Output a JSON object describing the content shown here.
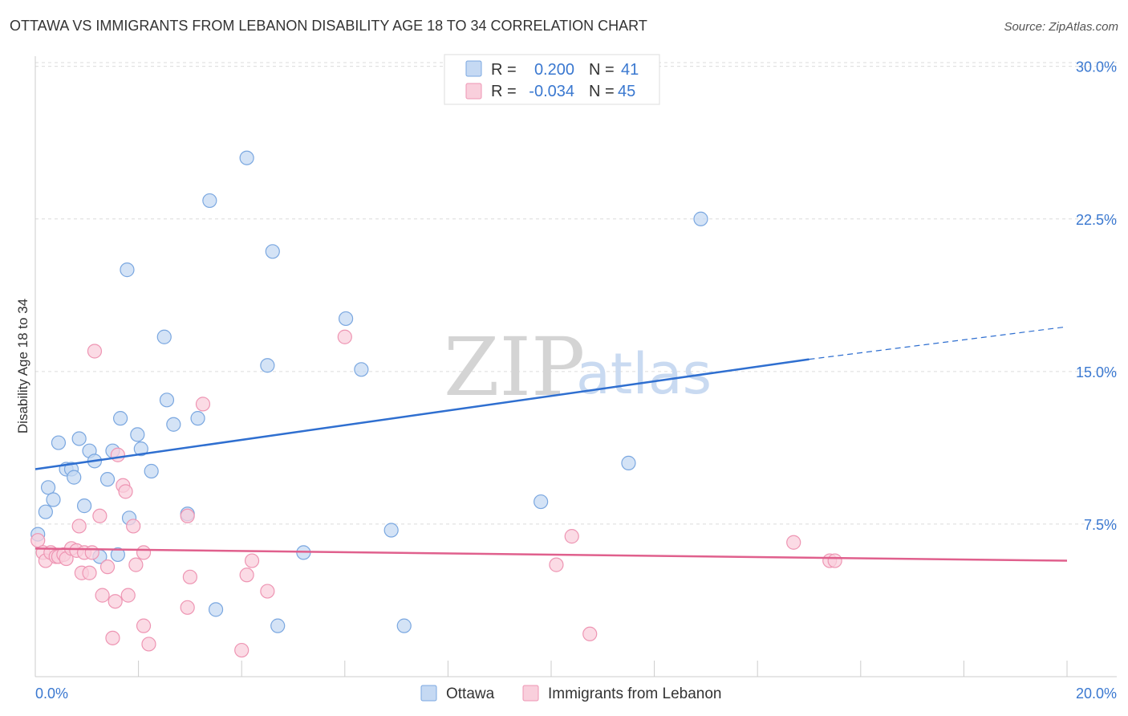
{
  "header": {
    "title": "OTTAWA VS IMMIGRANTS FROM LEBANON DISABILITY AGE 18 TO 34 CORRELATION CHART",
    "source": "Source: ZipAtlas.com"
  },
  "watermark": {
    "zip": "ZIP",
    "atlas": "atlas"
  },
  "colors": {
    "ottawa_fill": "#c5d9f3",
    "ottawa_stroke": "#7aa7e0",
    "ottawa_line": "#2f6fd0",
    "lebanon_fill": "#f9cfdc",
    "lebanon_stroke": "#ee95b3",
    "lebanon_line": "#e0608d",
    "tick_text": "#3a78d0"
  },
  "legend": {
    "rows": [
      {
        "r_label": "R =",
        "r_value": "0.200",
        "n_label": "N =",
        "n_value": "41"
      },
      {
        "r_label": "R =",
        "r_value": "-0.034",
        "n_label": "N =",
        "n_value": "45"
      }
    ]
  },
  "chart_data": {
    "type": "scatter",
    "title": "OTTAWA VS IMMIGRANTS FROM LEBANON DISABILITY AGE 18 TO 34 CORRELATION CHART",
    "xlabel": "",
    "ylabel": "Disability Age 18 to 34",
    "xlim": [
      0,
      20
    ],
    "ylim": [
      0,
      30.5
    ],
    "x_tick_labels": [
      "0.0%",
      "20.0%"
    ],
    "y_ticks": [
      7.5,
      15.0,
      22.5,
      30.0
    ],
    "y_tick_labels": [
      "7.5%",
      "15.0%",
      "22.5%",
      "30.0%"
    ],
    "grid": true,
    "series": [
      {
        "name": "Ottawa",
        "points": [
          [
            0.05,
            7.0
          ],
          [
            0.2,
            8.1
          ],
          [
            0.25,
            9.3
          ],
          [
            0.35,
            8.7
          ],
          [
            0.45,
            11.5
          ],
          [
            0.6,
            10.2
          ],
          [
            0.7,
            10.2
          ],
          [
            0.75,
            9.8
          ],
          [
            0.85,
            11.7
          ],
          [
            0.95,
            8.4
          ],
          [
            1.05,
            11.1
          ],
          [
            1.15,
            10.6
          ],
          [
            1.25,
            5.9
          ],
          [
            1.4,
            9.7
          ],
          [
            1.5,
            11.1
          ],
          [
            1.6,
            6.0
          ],
          [
            1.65,
            12.7
          ],
          [
            1.78,
            20.0
          ],
          [
            1.82,
            7.8
          ],
          [
            1.98,
            11.9
          ],
          [
            2.05,
            11.2
          ],
          [
            2.25,
            10.1
          ],
          [
            2.5,
            16.7
          ],
          [
            2.55,
            13.6
          ],
          [
            2.68,
            12.4
          ],
          [
            2.95,
            8.0
          ],
          [
            3.15,
            12.7
          ],
          [
            3.38,
            23.4
          ],
          [
            3.5,
            3.3
          ],
          [
            4.1,
            25.5
          ],
          [
            4.5,
            15.3
          ],
          [
            4.6,
            20.9
          ],
          [
            4.7,
            2.5
          ],
          [
            5.2,
            6.1
          ],
          [
            6.02,
            17.6
          ],
          [
            6.32,
            15.1
          ],
          [
            6.9,
            7.2
          ],
          [
            7.15,
            2.5
          ],
          [
            9.8,
            8.6
          ],
          [
            11.5,
            10.5
          ],
          [
            12.9,
            22.5
          ]
        ],
        "trend": {
          "x_start": 0,
          "y_start": 10.2,
          "x_solid_end": 15.0,
          "y_solid_end": 15.6,
          "x_end": 20,
          "y_end": 17.2
        }
      },
      {
        "name": "Immigrants from Lebanon",
        "points": [
          [
            0.05,
            6.7
          ],
          [
            0.15,
            6.1
          ],
          [
            0.2,
            5.7
          ],
          [
            0.3,
            6.1
          ],
          [
            0.4,
            5.9
          ],
          [
            0.45,
            5.9
          ],
          [
            0.55,
            6.0
          ],
          [
            0.6,
            5.8
          ],
          [
            0.7,
            6.3
          ],
          [
            0.8,
            6.2
          ],
          [
            0.85,
            7.4
          ],
          [
            0.9,
            5.1
          ],
          [
            0.95,
            6.1
          ],
          [
            1.05,
            5.1
          ],
          [
            1.1,
            6.1
          ],
          [
            1.15,
            16.0
          ],
          [
            1.25,
            7.9
          ],
          [
            1.3,
            4.0
          ],
          [
            1.4,
            5.4
          ],
          [
            1.5,
            1.9
          ],
          [
            1.55,
            3.7
          ],
          [
            1.6,
            10.9
          ],
          [
            1.7,
            9.4
          ],
          [
            1.75,
            9.1
          ],
          [
            1.8,
            4.0
          ],
          [
            1.9,
            7.4
          ],
          [
            1.95,
            5.5
          ],
          [
            2.1,
            6.1
          ],
          [
            2.1,
            2.5
          ],
          [
            2.2,
            1.6
          ],
          [
            2.95,
            7.9
          ],
          [
            2.95,
            3.4
          ],
          [
            3.0,
            4.9
          ],
          [
            3.25,
            13.4
          ],
          [
            4.0,
            1.3
          ],
          [
            4.1,
            5.0
          ],
          [
            4.2,
            5.7
          ],
          [
            4.5,
            4.2
          ],
          [
            6.0,
            16.7
          ],
          [
            10.1,
            5.5
          ],
          [
            10.4,
            6.9
          ],
          [
            10.75,
            2.1
          ],
          [
            14.7,
            6.6
          ],
          [
            15.4,
            5.7
          ],
          [
            15.5,
            5.7
          ]
        ],
        "trend": {
          "x_start": 0,
          "y_start": 6.3,
          "x_end": 20,
          "y_end": 5.7
        }
      }
    ]
  },
  "bottom_legend": {
    "items": [
      {
        "label": "Ottawa"
      },
      {
        "label": "Immigrants from Lebanon"
      }
    ]
  }
}
